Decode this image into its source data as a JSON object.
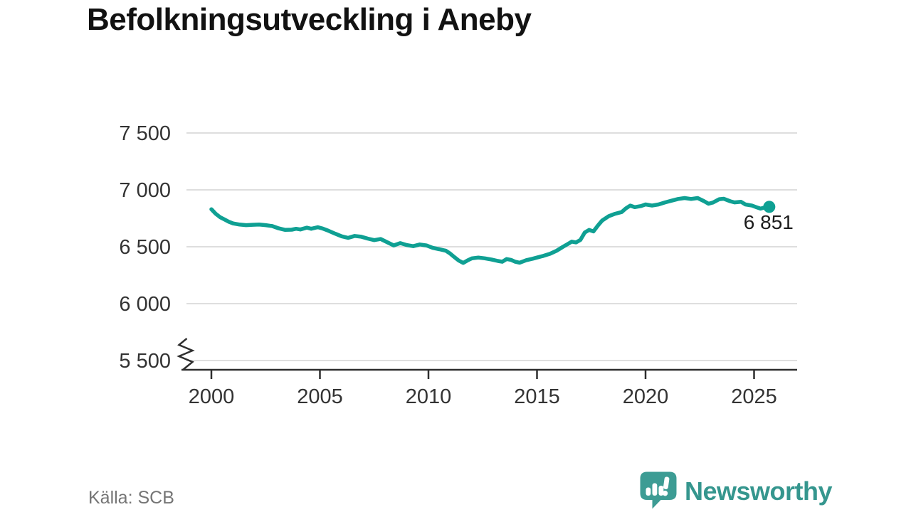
{
  "chart_data": {
    "type": "line",
    "title": "Befolkningsutveckling i Aneby",
    "xlabel": "",
    "ylabel": "",
    "ylim": [
      5500,
      7500
    ],
    "xlim": [
      2000,
      2027
    ],
    "grid": true,
    "legend": false,
    "axis_break_bottom_left": true,
    "y_ticks": [
      {
        "value": 7500,
        "label": "7 500"
      },
      {
        "value": 7000,
        "label": "7 000"
      },
      {
        "value": 6500,
        "label": "6 500"
      },
      {
        "value": 6000,
        "label": "6 000"
      },
      {
        "value": 5500,
        "label": "5 500"
      }
    ],
    "x_ticks": [
      {
        "value": 2000,
        "label": "2000"
      },
      {
        "value": 2005,
        "label": "2005"
      },
      {
        "value": 2010,
        "label": "2010"
      },
      {
        "value": 2015,
        "label": "2015"
      },
      {
        "value": 2020,
        "label": "2020"
      },
      {
        "value": 2025,
        "label": "2025"
      }
    ],
    "end_annotation": {
      "label": "6 851",
      "value": 6851,
      "x": 2025.7
    },
    "source": "Källa: SCB",
    "series": [
      {
        "points": [
          [
            2000.0,
            6830
          ],
          [
            2000.2,
            6790
          ],
          [
            2000.4,
            6760
          ],
          [
            2000.6,
            6740
          ],
          [
            2000.8,
            6720
          ],
          [
            2001.0,
            6705
          ],
          [
            2001.3,
            6695
          ],
          [
            2001.6,
            6690
          ],
          [
            2001.9,
            6693
          ],
          [
            2002.2,
            6695
          ],
          [
            2002.5,
            6690
          ],
          [
            2002.8,
            6682
          ],
          [
            2003.1,
            6662
          ],
          [
            2003.4,
            6648
          ],
          [
            2003.7,
            6650
          ],
          [
            2003.9,
            6658
          ],
          [
            2004.1,
            6652
          ],
          [
            2004.4,
            6668
          ],
          [
            2004.6,
            6658
          ],
          [
            2004.9,
            6672
          ],
          [
            2005.1,
            6662
          ],
          [
            2005.4,
            6640
          ],
          [
            2005.7,
            6615
          ],
          [
            2006.0,
            6592
          ],
          [
            2006.3,
            6578
          ],
          [
            2006.6,
            6595
          ],
          [
            2006.9,
            6588
          ],
          [
            2007.2,
            6572
          ],
          [
            2007.5,
            6558
          ],
          [
            2007.8,
            6568
          ],
          [
            2008.1,
            6540
          ],
          [
            2008.4,
            6512
          ],
          [
            2008.7,
            6532
          ],
          [
            2009.0,
            6515
          ],
          [
            2009.3,
            6505
          ],
          [
            2009.6,
            6520
          ],
          [
            2009.9,
            6512
          ],
          [
            2010.2,
            6490
          ],
          [
            2010.5,
            6478
          ],
          [
            2010.8,
            6465
          ],
          [
            2011.0,
            6440
          ],
          [
            2011.2,
            6408
          ],
          [
            2011.4,
            6378
          ],
          [
            2011.6,
            6358
          ],
          [
            2011.8,
            6380
          ],
          [
            2012.0,
            6398
          ],
          [
            2012.3,
            6405
          ],
          [
            2012.6,
            6398
          ],
          [
            2012.9,
            6388
          ],
          [
            2013.2,
            6375
          ],
          [
            2013.4,
            6368
          ],
          [
            2013.6,
            6392
          ],
          [
            2013.8,
            6385
          ],
          [
            2014.0,
            6368
          ],
          [
            2014.2,
            6360
          ],
          [
            2014.5,
            6382
          ],
          [
            2014.8,
            6395
          ],
          [
            2015.0,
            6405
          ],
          [
            2015.3,
            6420
          ],
          [
            2015.6,
            6438
          ],
          [
            2015.9,
            6465
          ],
          [
            2016.2,
            6500
          ],
          [
            2016.4,
            6522
          ],
          [
            2016.6,
            6545
          ],
          [
            2016.8,
            6538
          ],
          [
            2017.0,
            6560
          ],
          [
            2017.2,
            6625
          ],
          [
            2017.4,
            6648
          ],
          [
            2017.6,
            6635
          ],
          [
            2017.8,
            6685
          ],
          [
            2018.0,
            6730
          ],
          [
            2018.3,
            6768
          ],
          [
            2018.6,
            6790
          ],
          [
            2018.9,
            6805
          ],
          [
            2019.1,
            6838
          ],
          [
            2019.3,
            6862
          ],
          [
            2019.5,
            6848
          ],
          [
            2019.8,
            6858
          ],
          [
            2020.0,
            6872
          ],
          [
            2020.3,
            6862
          ],
          [
            2020.6,
            6872
          ],
          [
            2020.9,
            6890
          ],
          [
            2021.2,
            6905
          ],
          [
            2021.5,
            6920
          ],
          [
            2021.8,
            6928
          ],
          [
            2022.1,
            6920
          ],
          [
            2022.4,
            6928
          ],
          [
            2022.7,
            6900
          ],
          [
            2022.9,
            6878
          ],
          [
            2023.1,
            6888
          ],
          [
            2023.4,
            6918
          ],
          [
            2023.6,
            6922
          ],
          [
            2023.9,
            6900
          ],
          [
            2024.1,
            6890
          ],
          [
            2024.4,
            6895
          ],
          [
            2024.6,
            6872
          ],
          [
            2024.9,
            6862
          ],
          [
            2025.1,
            6848
          ],
          [
            2025.3,
            6835
          ],
          [
            2025.5,
            6846
          ],
          [
            2025.7,
            6851
          ]
        ]
      }
    ]
  },
  "footer": {
    "source_label": "Källa: SCB",
    "brand_name": "Newsworthy"
  },
  "colors": {
    "line": "#0fa093",
    "grid": "#dedede",
    "axis": "#2e2e2e",
    "tick_text": "#333333",
    "title_text": "#121212",
    "source_text": "#757575",
    "annotation_text": "#1c1c1c",
    "brand_text": "#35968e",
    "brand_icon": "#3d9c94"
  }
}
